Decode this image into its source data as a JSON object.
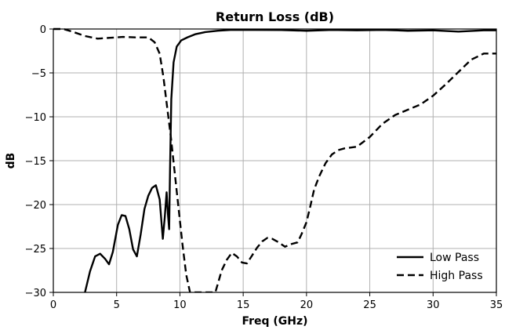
{
  "chart_data": {
    "type": "line",
    "title": "Return Loss (dB)",
    "xlabel": "Freq (GHz)",
    "ylabel": "dB",
    "xlim": [
      0,
      35
    ],
    "ylim": [
      -30,
      0
    ],
    "xticks": [
      0,
      5,
      10,
      15,
      20,
      25,
      30,
      35
    ],
    "yticks": [
      0,
      -5,
      -10,
      -15,
      -20,
      -25,
      -30
    ],
    "xtick_labels": [
      "0",
      "5",
      "10",
      "15",
      "20",
      "25",
      "30",
      "35"
    ],
    "ytick_labels": [
      "0",
      "−5",
      "−10",
      "−15",
      "−20",
      "−25",
      "−30"
    ],
    "grid": true,
    "legend_position": "bottom-right",
    "series": [
      {
        "name": "Low Pass",
        "style": "solid",
        "color": "#000000",
        "x": [
          2.5,
          2.9,
          3.3,
          3.7,
          4.1,
          4.4,
          4.7,
          5.1,
          5.4,
          5.7,
          6.0,
          6.3,
          6.6,
          6.9,
          7.2,
          7.5,
          7.8,
          8.1,
          8.4,
          8.65,
          8.8,
          8.95,
          9.05,
          9.15,
          9.22,
          9.32,
          9.5,
          9.75,
          10.1,
          10.6,
          11.2,
          12.0,
          13.0,
          14.0,
          16.0,
          18.0,
          20.0,
          22.0,
          24.0,
          26.0,
          28.0,
          30.0,
          32.0,
          34.0,
          35.0
        ],
        "y": [
          -30.0,
          -27.6,
          -25.9,
          -25.6,
          -26.2,
          -26.8,
          -25.4,
          -22.3,
          -21.2,
          -21.3,
          -22.8,
          -25.1,
          -25.9,
          -23.4,
          -20.5,
          -19.0,
          -18.1,
          -17.8,
          -19.4,
          -23.9,
          -21.5,
          -18.6,
          -21.0,
          -22.8,
          -16.0,
          -8.0,
          -3.8,
          -2.0,
          -1.3,
          -0.95,
          -0.6,
          -0.35,
          -0.2,
          -0.1,
          -0.1,
          -0.12,
          -0.2,
          -0.1,
          -0.15,
          -0.1,
          -0.2,
          -0.15,
          -0.3,
          -0.15,
          -0.15
        ]
      },
      {
        "name": "High Pass",
        "style": "dashed",
        "color": "#000000",
        "x": [
          0.0,
          0.8,
          1.5,
          2.5,
          3.5,
          4.5,
          5.5,
          6.5,
          7.5,
          8.0,
          8.4,
          8.7,
          9.0,
          9.3,
          9.6,
          9.9,
          10.2,
          10.5,
          10.8,
          10.95,
          12.8,
          13.0,
          13.3,
          13.7,
          14.1,
          14.5,
          14.9,
          15.3,
          15.7,
          16.1,
          16.5,
          16.9,
          17.3,
          17.8,
          18.3,
          18.8,
          19.3,
          19.6,
          20.0,
          20.3,
          20.6,
          21.0,
          21.5,
          22.0,
          22.5,
          23.0,
          24.0,
          25.0,
          26.0,
          27.0,
          28.0,
          29.0,
          30.0,
          31.0,
          32.0,
          33.0,
          34.0,
          35.0
        ],
        "y": [
          0.0,
          0.0,
          -0.3,
          -0.8,
          -1.1,
          -1.0,
          -0.9,
          -0.95,
          -0.95,
          -1.5,
          -2.8,
          -5.5,
          -9.0,
          -12.5,
          -16.5,
          -20.5,
          -24.5,
          -28.0,
          -30.0,
          -30.0,
          -30.0,
          -29.0,
          -27.5,
          -26.3,
          -25.5,
          -25.9,
          -26.6,
          -26.7,
          -25.8,
          -24.9,
          -24.2,
          -23.8,
          -23.9,
          -24.3,
          -24.8,
          -24.5,
          -24.3,
          -23.4,
          -22.0,
          -20.2,
          -18.3,
          -16.8,
          -15.3,
          -14.3,
          -13.8,
          -13.6,
          -13.4,
          -12.3,
          -10.8,
          -9.8,
          -9.2,
          -8.6,
          -7.6,
          -6.3,
          -4.9,
          -3.5,
          -2.8,
          -2.8
        ]
      }
    ]
  }
}
